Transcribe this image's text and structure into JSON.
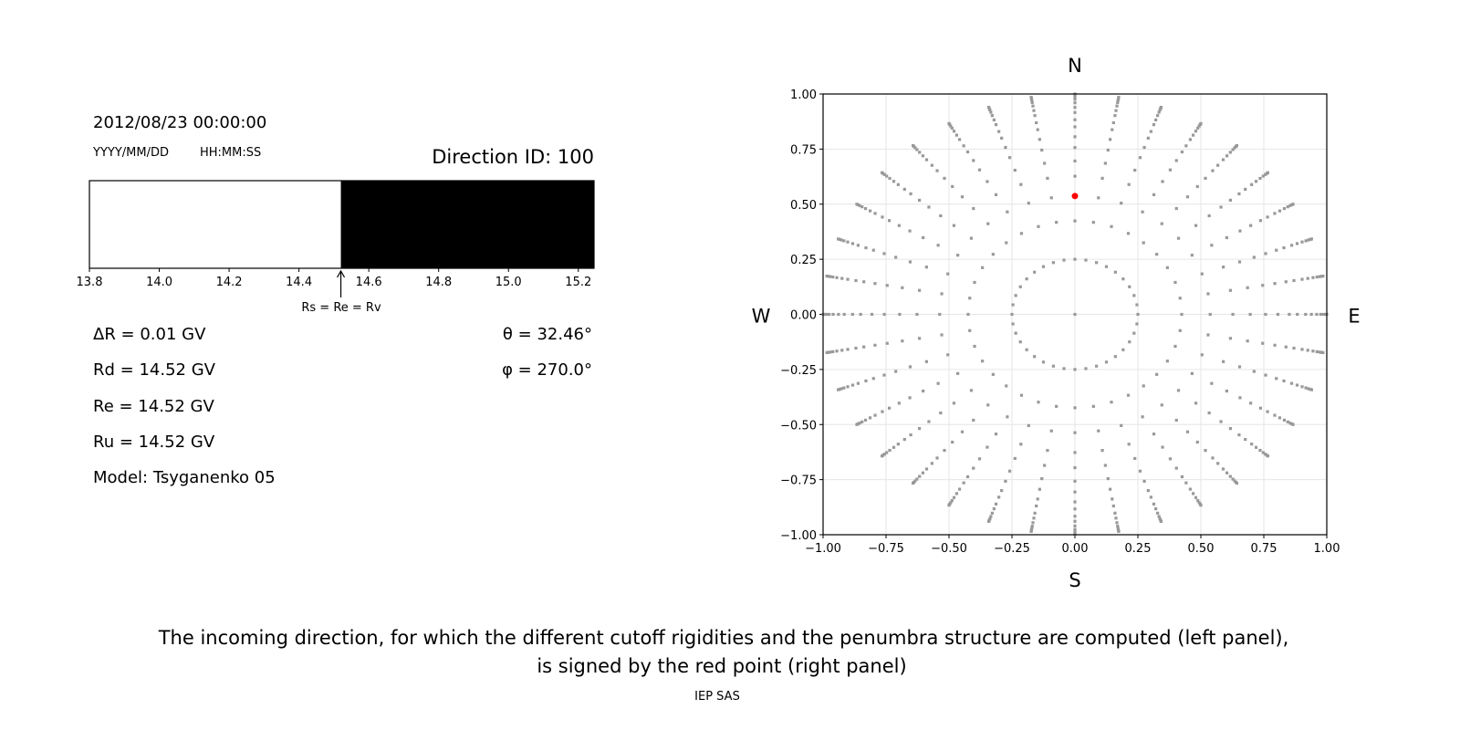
{
  "left_panel": {
    "datetime": "2012/08/23 00:00:00",
    "date_format": "YYYY/MM/DD",
    "time_format": "HH:MM:SS",
    "direction_id": "Direction ID: 100",
    "arrow_label": "Rs = Re = Rv",
    "delta_r": "ΔR = 0.01 GV",
    "rd": "Rd = 14.52 GV",
    "re": "Re = 14.52 GV",
    "ru": "Ru = 14.52 GV",
    "model": "Model: Tsyganenko 05",
    "theta": "θ = 32.46°",
    "phi": "φ = 270.0°"
  },
  "caption": {
    "line1": "The incoming direction, for which the different cutoff rigidities and the penumbra structure are computed (left panel),",
    "line2": "is signed by the red point (right panel)",
    "credit": "IEP SAS"
  },
  "chart_data": [
    {
      "type": "bar",
      "xlim": [
        13.8,
        15.245
      ],
      "xticks": [
        "13.8",
        "14.0",
        "14.2",
        "14.4",
        "14.6",
        "14.8",
        "15.0",
        "15.2"
      ],
      "segments": [
        {
          "from": 13.8,
          "to": 14.52,
          "color": "#ffffff"
        },
        {
          "from": 14.52,
          "to": 15.245,
          "color": "#000000"
        }
      ],
      "marker": 14.52
    },
    {
      "type": "scatter",
      "xlim": [
        -1,
        1
      ],
      "ylim": [
        -1,
        1
      ],
      "grid": true,
      "xticks": [
        "−1.00",
        "−0.75",
        "−0.50",
        "−0.25",
        "0.00",
        "0.25",
        "0.50",
        "0.75",
        "1.00"
      ],
      "yticks": [
        "1.00",
        "0.75",
        "0.50",
        "0.25",
        "0.00",
        "−0.25",
        "−0.50",
        "−0.75",
        "−1.00"
      ],
      "directions": {
        "north": "N",
        "south": "S",
        "east": "E",
        "west": "W"
      },
      "grid_color": "#999999",
      "azimuth_step_deg": 10,
      "radii": [
        0.25,
        0.424,
        0.537,
        0.627,
        0.696,
        0.757,
        0.806,
        0.851,
        0.883,
        0.916,
        0.939,
        0.96,
        0.976,
        0.987,
        0.995,
        1.0
      ],
      "center_point": [
        0,
        0
      ],
      "selected_point": {
        "x": 0,
        "y": 0.537,
        "color": "#ff0000"
      }
    }
  ]
}
